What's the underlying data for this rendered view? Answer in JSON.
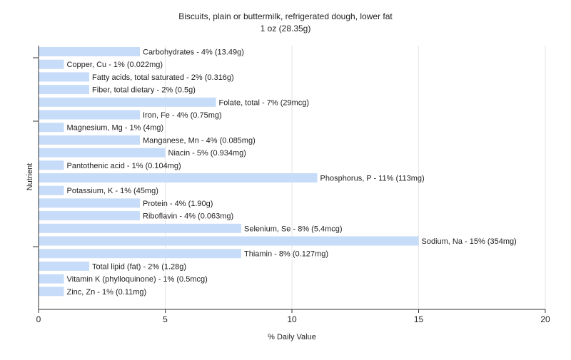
{
  "chart_data": {
    "type": "bar",
    "orientation": "horizontal",
    "title": "Biscuits, plain or buttermilk, refrigerated dough, lower fat",
    "subtitle": "1 oz (28.35g)",
    "xlabel": "% Daily Value",
    "ylabel": "Nutrient",
    "xlim": [
      0,
      20
    ],
    "xticks": [
      0,
      5,
      10,
      15,
      20
    ],
    "grid": true,
    "bar_color": "#c6dcf8",
    "categories": [
      "Carbohydrates",
      "Copper, Cu",
      "Fatty acids, total saturated",
      "Fiber, total dietary",
      "Folate, total",
      "Iron, Fe",
      "Magnesium, Mg",
      "Manganese, Mn",
      "Niacin",
      "Pantothenic acid",
      "Phosphorus, P",
      "Potassium, K",
      "Protein",
      "Riboflavin",
      "Selenium, Se",
      "Sodium, Na",
      "Thiamin",
      "Total lipid (fat)",
      "Vitamin K (phylloquinone)",
      "Zinc, Zn"
    ],
    "values": [
      4,
      1,
      2,
      2,
      7,
      4,
      1,
      4,
      5,
      1,
      11,
      1,
      4,
      4,
      8,
      15,
      8,
      2,
      1,
      1
    ],
    "data_labels": [
      "Carbohydrates - 4% (13.49g)",
      "Copper, Cu - 1% (0.022mg)",
      "Fatty acids, total saturated - 2% (0.316g)",
      "Fiber, total dietary - 2% (0.5g)",
      "Folate, total - 7% (29mcg)",
      "Iron, Fe - 4% (0.75mg)",
      "Magnesium, Mg - 1% (4mg)",
      "Manganese, Mn - 4% (0.085mg)",
      "Niacin - 5% (0.934mg)",
      "Pantothenic acid - 1% (0.104mg)",
      "Phosphorus, P - 11% (113mg)",
      "Potassium, K - 1% (45mg)",
      "Protein - 4% (1.90g)",
      "Riboflavin - 4% (0.063mg)",
      "Selenium, Se - 8% (5.4mcg)",
      "Sodium, Na - 15% (354mg)",
      "Thiamin - 8% (0.127mg)",
      "Total lipid (fat) - 2% (1.28g)",
      "Vitamin K (phylloquinone) - 1% (0.5mcg)",
      "Zinc, Zn - 1% (0.11mg)"
    ]
  }
}
